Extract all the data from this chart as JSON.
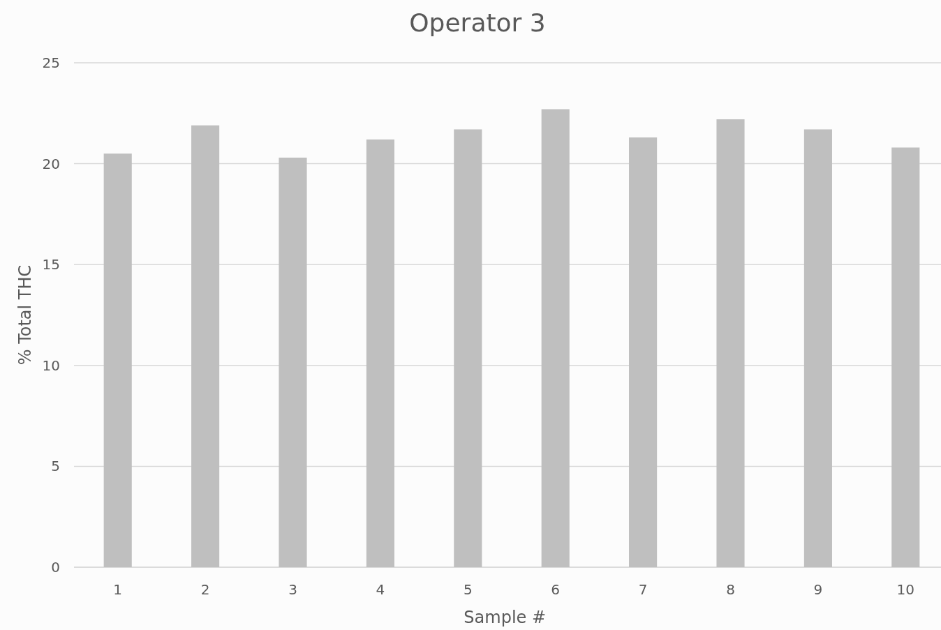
{
  "chart_data": {
    "type": "bar",
    "title": "Operator 3",
    "xlabel": "Sample #",
    "ylabel": "% Total THC",
    "categories": [
      "1",
      "2",
      "3",
      "4",
      "5",
      "6",
      "7",
      "8",
      "9",
      "10"
    ],
    "values": [
      20.5,
      21.9,
      20.3,
      21.2,
      21.7,
      22.7,
      21.3,
      22.2,
      21.7,
      20.8
    ],
    "color": "#bfbfbf",
    "ylim": [
      0,
      25
    ],
    "yticks": [
      0,
      5,
      10,
      15,
      20,
      25
    ],
    "grid": "y"
  }
}
